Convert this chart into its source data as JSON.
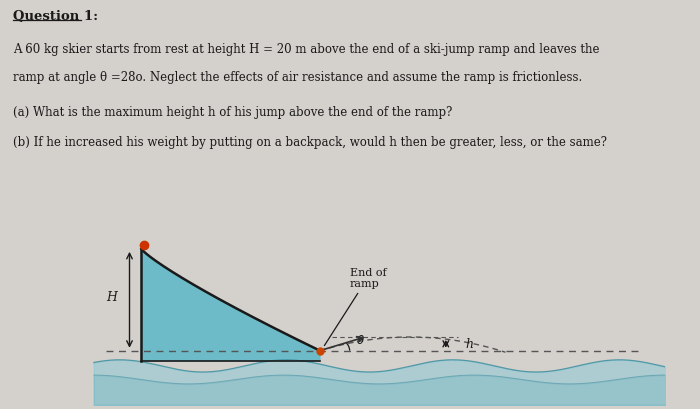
{
  "bg_color": "#d4d0cc",
  "title": "Question 1:",
  "line1": "A 60 kg skier starts from rest at height H = 20 m above the end of a ski-jump ramp and leaves the",
  "line2": "ramp at angle θ =28o. Neglect the effects of air resistance and assume the ramp is frictionless.",
  "line3": "(a) What is the maximum height h of his jump above the end of the ramp?",
  "line4": "(b) If he increased his weight by putting on a backpack, would h then be greater, less, or the same?",
  "ramp_fill_color": "#5bb8c8",
  "ramp_line_color": "#1a1a1a",
  "dashed_line_color": "#555555",
  "skier_color": "#cc4400",
  "trajectory_color": "#555555",
  "wave_color": "#7cc8d8",
  "text_color": "#1a1a1a"
}
